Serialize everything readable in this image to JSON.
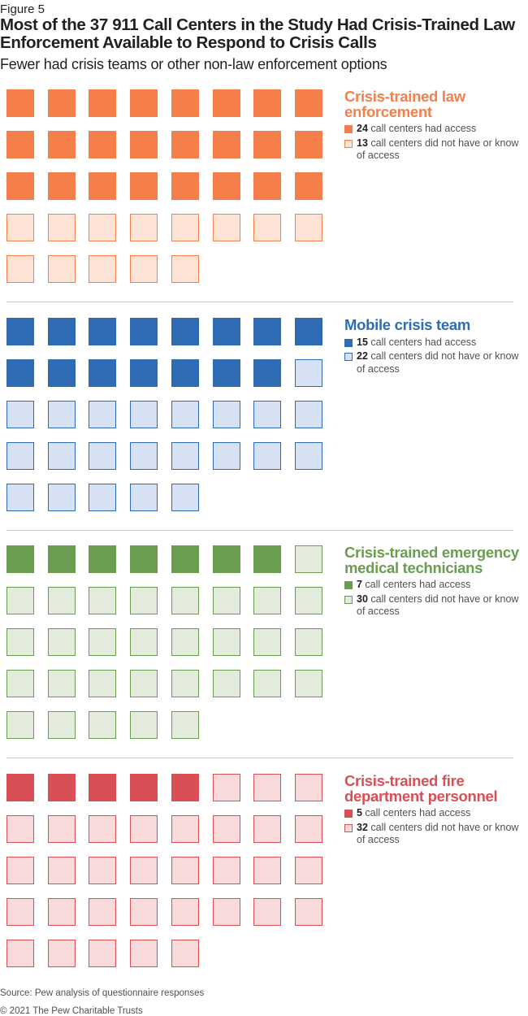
{
  "figure_label": "Figure 5",
  "title": "Most of the 37 911 Call Centers in the Study Had Crisis-Trained Law Enforcement Available to Respond to Crisis Calls",
  "subtitle": "Fewer had crisis teams or other non-law enforcement options",
  "source": "Source: Pew analysis of questionnaire responses",
  "copyright": "© 2021 The Pew Charitable Trusts",
  "chart_data": {
    "type": "waffle",
    "total": 37,
    "columns": 8,
    "title": "Most of the 37 911 Call Centers in the Study Had Crisis-Trained Law Enforcement Available to Respond to Crisis Calls",
    "categories": [
      {
        "name": "Crisis-trained law enforcement",
        "had_access": 24,
        "no_access": 13,
        "had_label": "call centers had access",
        "no_label": "call centers did not have or know of access",
        "color": "#f47f4b",
        "light_fill": "#fde2d6",
        "title_color": "#f47f4b"
      },
      {
        "name": "Mobile crisis team",
        "had_access": 15,
        "no_access": 22,
        "had_label": "call centers had access",
        "no_label": "call centers did not have or know of access",
        "color": "#2f6cb4",
        "light_fill": "#d6e2f3",
        "title_color": "#2f6cb4"
      },
      {
        "name": "Crisis-trained emergency medical technicians",
        "had_access": 7,
        "no_access": 30,
        "had_label": "call centers had access",
        "no_label": "call centers did not have or know of access",
        "color": "#6a9d4f",
        "light_fill": "#e3ecdc",
        "title_color": "#6a9d4f"
      },
      {
        "name": "Crisis-trained fire department personnel",
        "had_access": 5,
        "no_access": 32,
        "had_label": "call centers had access",
        "no_label": "call centers did not have or know of access",
        "color": "#d94f55",
        "light_fill": "#f8dadb",
        "title_color": "#d94f55"
      }
    ]
  }
}
